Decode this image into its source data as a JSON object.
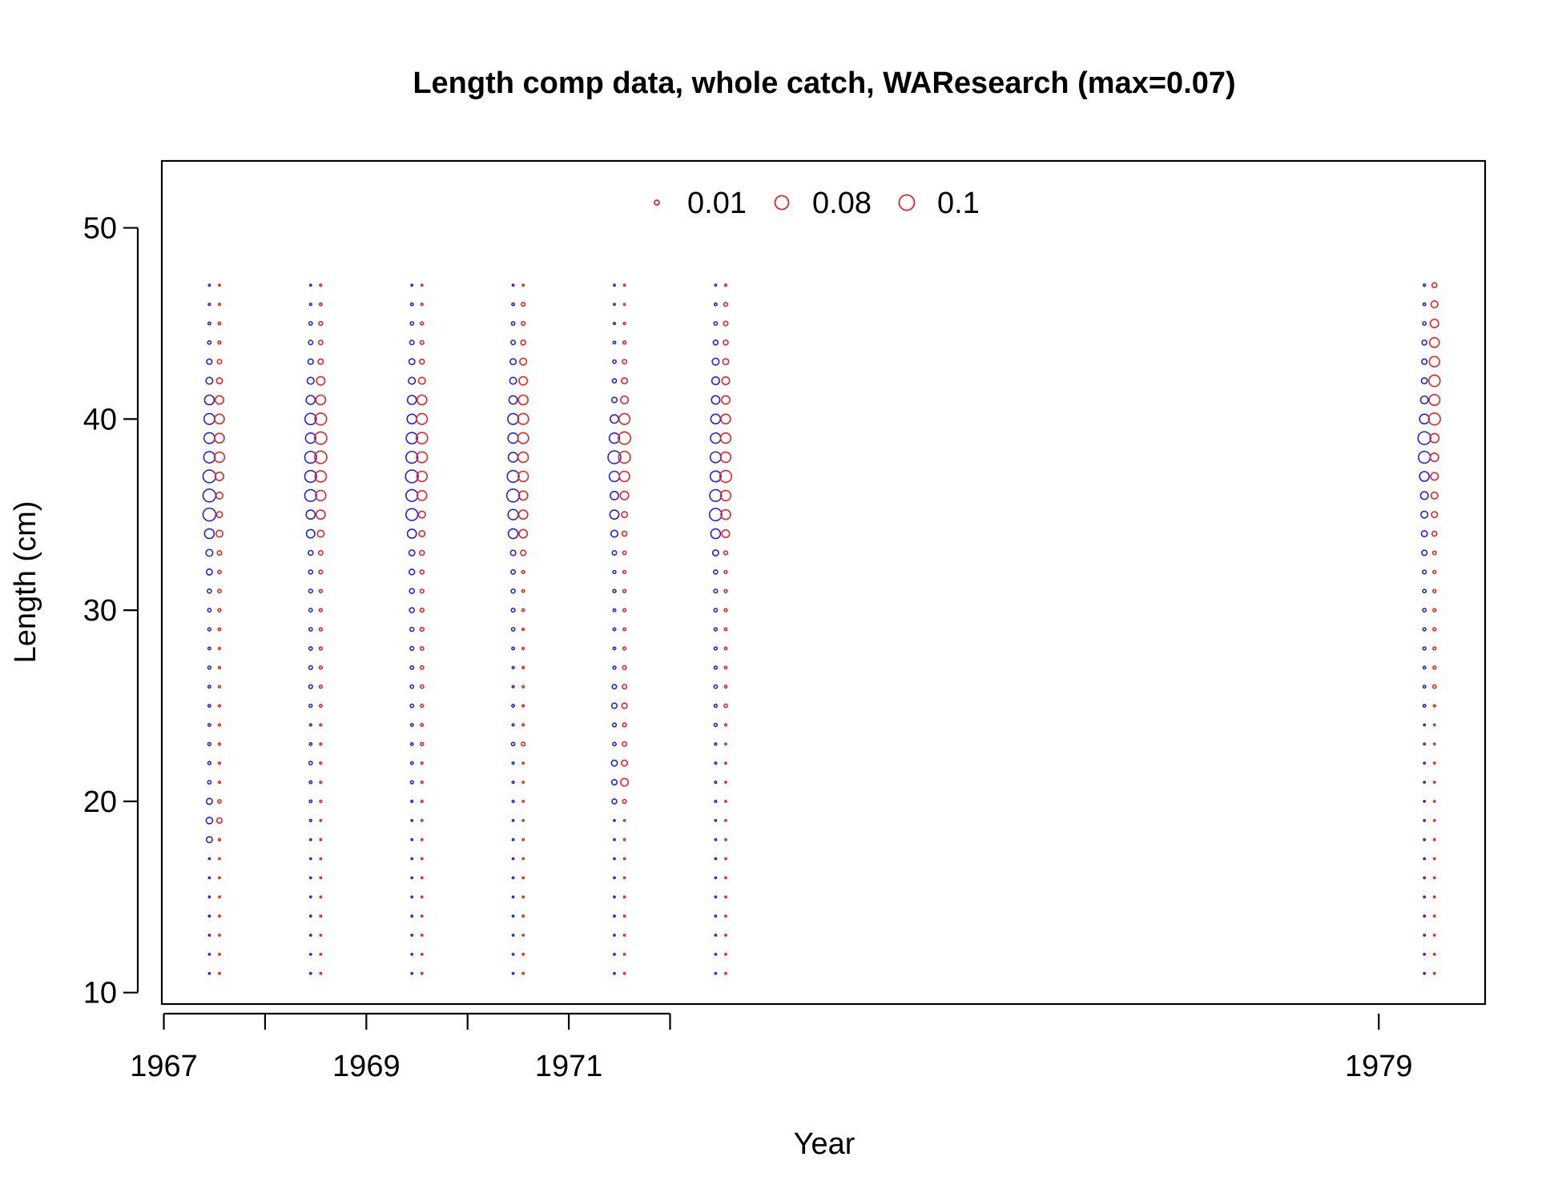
{
  "chart_data": {
    "type": "scatter",
    "subtype": "bubble",
    "title": "Length comp data, whole catch, WAResearch (max=0.07)",
    "xlabel": "Year",
    "ylabel": "Length (cm)",
    "xlim": [
      1966.98,
      1980.05
    ],
    "ylim": [
      9.4,
      53.5
    ],
    "x_ticks": [
      1967,
      1968,
      1969,
      1970,
      1971,
      1972,
      1979
    ],
    "x_tick_labels": [
      "1967",
      "",
      "1969",
      "",
      "1971",
      "",
      "1979"
    ],
    "y_ticks": [
      10,
      20,
      30,
      40,
      50
    ],
    "y_tick_labels": [
      "10",
      "20",
      "30",
      "40",
      "50"
    ],
    "grid": false,
    "legend": {
      "placement": "top",
      "entries": [
        {
          "label": "0.01",
          "value": 0.01
        },
        {
          "label": "0.08",
          "value": 0.08
        },
        {
          "label": "0.1",
          "value": 0.1
        }
      ],
      "color": "#ee2222"
    },
    "size_scale": {
      "max_value": 0.1,
      "max_radius_px": 9.5
    },
    "lengths": [
      11,
      12,
      13,
      14,
      15,
      16,
      17,
      18,
      19,
      20,
      21,
      22,
      23,
      24,
      25,
      26,
      27,
      28,
      29,
      30,
      31,
      32,
      33,
      34,
      35,
      36,
      37,
      38,
      39,
      40,
      41,
      42,
      43,
      44,
      45,
      46,
      47
    ],
    "series": [
      {
        "name": "",
        "sex": "female",
        "color": "#2222ee",
        "columns": [
          {
            "year": 1967.45,
            "values": [
              0.001,
              0.001,
              0.001,
              0.001,
              0.001,
              0.001,
              0.001,
              0.015,
              0.018,
              0.015,
              0.005,
              0.004,
              0.004,
              0.003,
              0.003,
              0.003,
              0.004,
              0.003,
              0.004,
              0.005,
              0.007,
              0.015,
              0.02,
              0.04,
              0.07,
              0.07,
              0.07,
              0.055,
              0.05,
              0.05,
              0.04,
              0.02,
              0.012,
              0.005,
              0.003,
              0.002,
              0.001
            ]
          },
          {
            "year": 1968.45,
            "values": [
              0.001,
              0.001,
              0.001,
              0.001,
              0.001,
              0.001,
              0.001,
              0.001,
              0.002,
              0.003,
              0.003,
              0.005,
              0.003,
              0.002,
              0.004,
              0.006,
              0.006,
              0.005,
              0.005,
              0.005,
              0.006,
              0.007,
              0.01,
              0.03,
              0.035,
              0.06,
              0.06,
              0.06,
              0.045,
              0.055,
              0.035,
              0.02,
              0.012,
              0.008,
              0.005,
              0.002,
              0.001
            ]
          },
          {
            "year": 1969.45,
            "values": [
              0.001,
              0.001,
              0.001,
              0.001,
              0.001,
              0.001,
              0.001,
              0.001,
              0.001,
              0.002,
              0.004,
              0.003,
              0.003,
              0.003,
              0.005,
              0.005,
              0.005,
              0.006,
              0.007,
              0.01,
              0.01,
              0.013,
              0.015,
              0.035,
              0.06,
              0.06,
              0.07,
              0.06,
              0.055,
              0.04,
              0.035,
              0.02,
              0.015,
              0.008,
              0.005,
              0.003,
              0.001
            ]
          },
          {
            "year": 1970.45,
            "values": [
              0.001,
              0.001,
              0.001,
              0.001,
              0.001,
              0.001,
              0.001,
              0.001,
              0.001,
              0.002,
              0.002,
              0.002,
              0.005,
              0.002,
              0.003,
              0.002,
              0.002,
              0.003,
              0.005,
              0.006,
              0.007,
              0.008,
              0.012,
              0.04,
              0.045,
              0.07,
              0.06,
              0.04,
              0.045,
              0.05,
              0.03,
              0.02,
              0.015,
              0.008,
              0.005,
              0.003,
              0.001
            ]
          },
          {
            "year": 1971.45,
            "values": [
              0.001,
              0.001,
              0.001,
              0.001,
              0.001,
              0.001,
              0.001,
              0.001,
              0.001,
              0.01,
              0.012,
              0.015,
              0.005,
              0.006,
              0.012,
              0.008,
              0.004,
              0.003,
              0.003,
              0.003,
              0.004,
              0.004,
              0.008,
              0.02,
              0.035,
              0.03,
              0.045,
              0.07,
              0.045,
              0.03,
              0.012,
              0.007,
              0.005,
              0.003,
              0.002,
              0.001,
              0.001
            ]
          },
          {
            "year": 1972.45,
            "values": [
              0.001,
              0.001,
              0.001,
              0.001,
              0.001,
              0.001,
              0.001,
              0.001,
              0.001,
              0.002,
              0.002,
              0.002,
              0.002,
              0.004,
              0.004,
              0.005,
              0.004,
              0.004,
              0.004,
              0.005,
              0.006,
              0.007,
              0.015,
              0.04,
              0.065,
              0.06,
              0.05,
              0.05,
              0.045,
              0.04,
              0.03,
              0.025,
              0.02,
              0.01,
              0.005,
              0.003,
              0.001
            ]
          },
          {
            "year": 1979.45,
            "values": [
              0.001,
              0.001,
              0.001,
              0.001,
              0.001,
              0.001,
              0.001,
              0.001,
              0.001,
              0.001,
              0.001,
              0.001,
              0.001,
              0.001,
              0.003,
              0.003,
              0.003,
              0.004,
              0.004,
              0.005,
              0.005,
              0.006,
              0.012,
              0.015,
              0.02,
              0.025,
              0.04,
              0.06,
              0.07,
              0.04,
              0.025,
              0.015,
              0.012,
              0.01,
              0.005,
              0.003,
              0.002
            ]
          }
        ]
      },
      {
        "name": "",
        "sex": "male",
        "color": "#ee2222",
        "columns": [
          {
            "year": 1967.55,
            "values": [
              0.001,
              0.001,
              0.001,
              0.001,
              0.001,
              0.001,
              0.001,
              0.002,
              0.012,
              0.005,
              0.002,
              0.002,
              0.002,
              0.002,
              0.002,
              0.002,
              0.002,
              0.002,
              0.003,
              0.004,
              0.005,
              0.005,
              0.008,
              0.02,
              0.015,
              0.02,
              0.03,
              0.045,
              0.04,
              0.04,
              0.03,
              0.015,
              0.008,
              0.004,
              0.003,
              0.002,
              0.001
            ]
          },
          {
            "year": 1968.55,
            "values": [
              0.001,
              0.001,
              0.001,
              0.001,
              0.001,
              0.001,
              0.001,
              0.001,
              0.001,
              0.002,
              0.002,
              0.002,
              0.002,
              0.002,
              0.003,
              0.004,
              0.004,
              0.004,
              0.004,
              0.004,
              0.004,
              0.006,
              0.008,
              0.02,
              0.035,
              0.045,
              0.055,
              0.065,
              0.065,
              0.06,
              0.04,
              0.03,
              0.012,
              0.008,
              0.006,
              0.003,
              0.002
            ]
          },
          {
            "year": 1969.55,
            "values": [
              0.001,
              0.001,
              0.001,
              0.001,
              0.001,
              0.001,
              0.001,
              0.001,
              0.001,
              0.002,
              0.002,
              0.002,
              0.004,
              0.003,
              0.004,
              0.005,
              0.005,
              0.005,
              0.006,
              0.006,
              0.006,
              0.007,
              0.01,
              0.015,
              0.02,
              0.04,
              0.045,
              0.05,
              0.055,
              0.05,
              0.04,
              0.02,
              0.01,
              0.006,
              0.004,
              0.002,
              0.001
            ]
          },
          {
            "year": 1970.55,
            "values": [
              0.001,
              0.001,
              0.001,
              0.001,
              0.001,
              0.001,
              0.001,
              0.001,
              0.001,
              0.001,
              0.001,
              0.001,
              0.006,
              0.002,
              0.002,
              0.002,
              0.002,
              0.002,
              0.002,
              0.003,
              0.003,
              0.004,
              0.012,
              0.03,
              0.035,
              0.035,
              0.045,
              0.045,
              0.05,
              0.05,
              0.04,
              0.03,
              0.02,
              0.01,
              0.006,
              0.006,
              0.001
            ]
          },
          {
            "year": 1971.55,
            "values": [
              0.001,
              0.001,
              0.001,
              0.001,
              0.001,
              0.001,
              0.001,
              0.001,
              0.001,
              0.006,
              0.025,
              0.015,
              0.008,
              0.006,
              0.012,
              0.008,
              0.006,
              0.004,
              0.003,
              0.004,
              0.004,
              0.004,
              0.005,
              0.01,
              0.015,
              0.03,
              0.045,
              0.06,
              0.065,
              0.05,
              0.025,
              0.015,
              0.008,
              0.004,
              0.002,
              0.001,
              0.001
            ]
          },
          {
            "year": 1972.55,
            "values": [
              0.001,
              0.001,
              0.001,
              0.001,
              0.001,
              0.001,
              0.001,
              0.001,
              0.001,
              0.001,
              0.001,
              0.001,
              0.001,
              0.002,
              0.005,
              0.003,
              0.003,
              0.003,
              0.003,
              0.004,
              0.004,
              0.004,
              0.006,
              0.025,
              0.04,
              0.045,
              0.06,
              0.045,
              0.045,
              0.04,
              0.03,
              0.025,
              0.015,
              0.01,
              0.008,
              0.006,
              0.002
            ]
          },
          {
            "year": 1979.55,
            "values": [
              0.001,
              0.001,
              0.001,
              0.001,
              0.001,
              0.001,
              0.001,
              0.001,
              0.001,
              0.001,
              0.001,
              0.001,
              0.001,
              0.001,
              0.002,
              0.005,
              0.004,
              0.004,
              0.004,
              0.004,
              0.004,
              0.004,
              0.005,
              0.01,
              0.015,
              0.02,
              0.025,
              0.03,
              0.035,
              0.06,
              0.05,
              0.055,
              0.045,
              0.04,
              0.03,
              0.02,
              0.01
            ]
          }
        ]
      }
    ]
  }
}
